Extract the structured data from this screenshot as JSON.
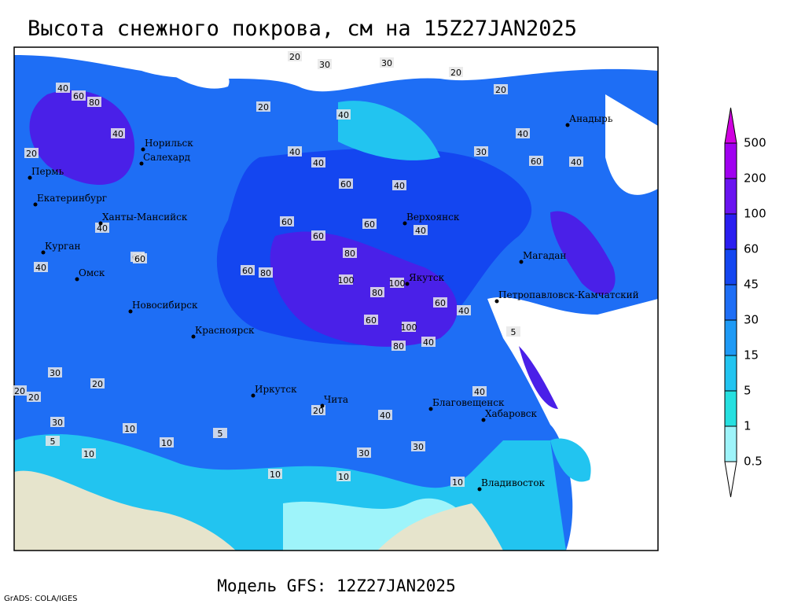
{
  "title": "Высота снежного покрова, см на 15Z27JAN2025",
  "footer": "Модель GFS: 12Z27JAN2025",
  "credit": "GrADS: COLA/IGES",
  "cities": [
    "Норильск",
    "Салехард",
    "Пермь",
    "Екатеринбург",
    "Ханты-Мансийск",
    "Курган",
    "Омск",
    "Новосибирск",
    "Красноярск",
    "Иркутск",
    "Чита",
    "Благовещенск",
    "Хабаровск",
    "Владивосток",
    "Якутск",
    "Верхоянск",
    "Магадан",
    "Анадырь",
    "Петропавловск-Камчатский"
  ],
  "contour_labels": [
    "20",
    "30",
    "30",
    "20",
    "20",
    "20",
    "40",
    "60",
    "80",
    "40",
    "20",
    "40",
    "40",
    "60",
    "40",
    "60",
    "40",
    "30",
    "40",
    "40",
    "60",
    "60",
    "40",
    "60",
    "80",
    "60",
    "100",
    "80",
    "100",
    "60",
    "80",
    "100",
    "60",
    "80",
    "40",
    "40",
    "40",
    "60",
    "40",
    "30",
    "20",
    "20",
    "30",
    "20",
    "10",
    "10",
    "5",
    "10",
    "5",
    "10",
    "20",
    "10",
    "30",
    "30",
    "40",
    "10",
    "40",
    "60",
    "5"
  ],
  "legend": {
    "levels": [
      500,
      200,
      100,
      60,
      45,
      30,
      15,
      5,
      1,
      0.5
    ],
    "colors": [
      "#d000e0",
      "#a000f0",
      "#6a14f0",
      "#2a1ef0",
      "#1446f0",
      "#1e6ef5",
      "#1e9af5",
      "#22c4f0",
      "#26e0e0",
      "#9ef4fa",
      "#ffffff"
    ]
  }
}
